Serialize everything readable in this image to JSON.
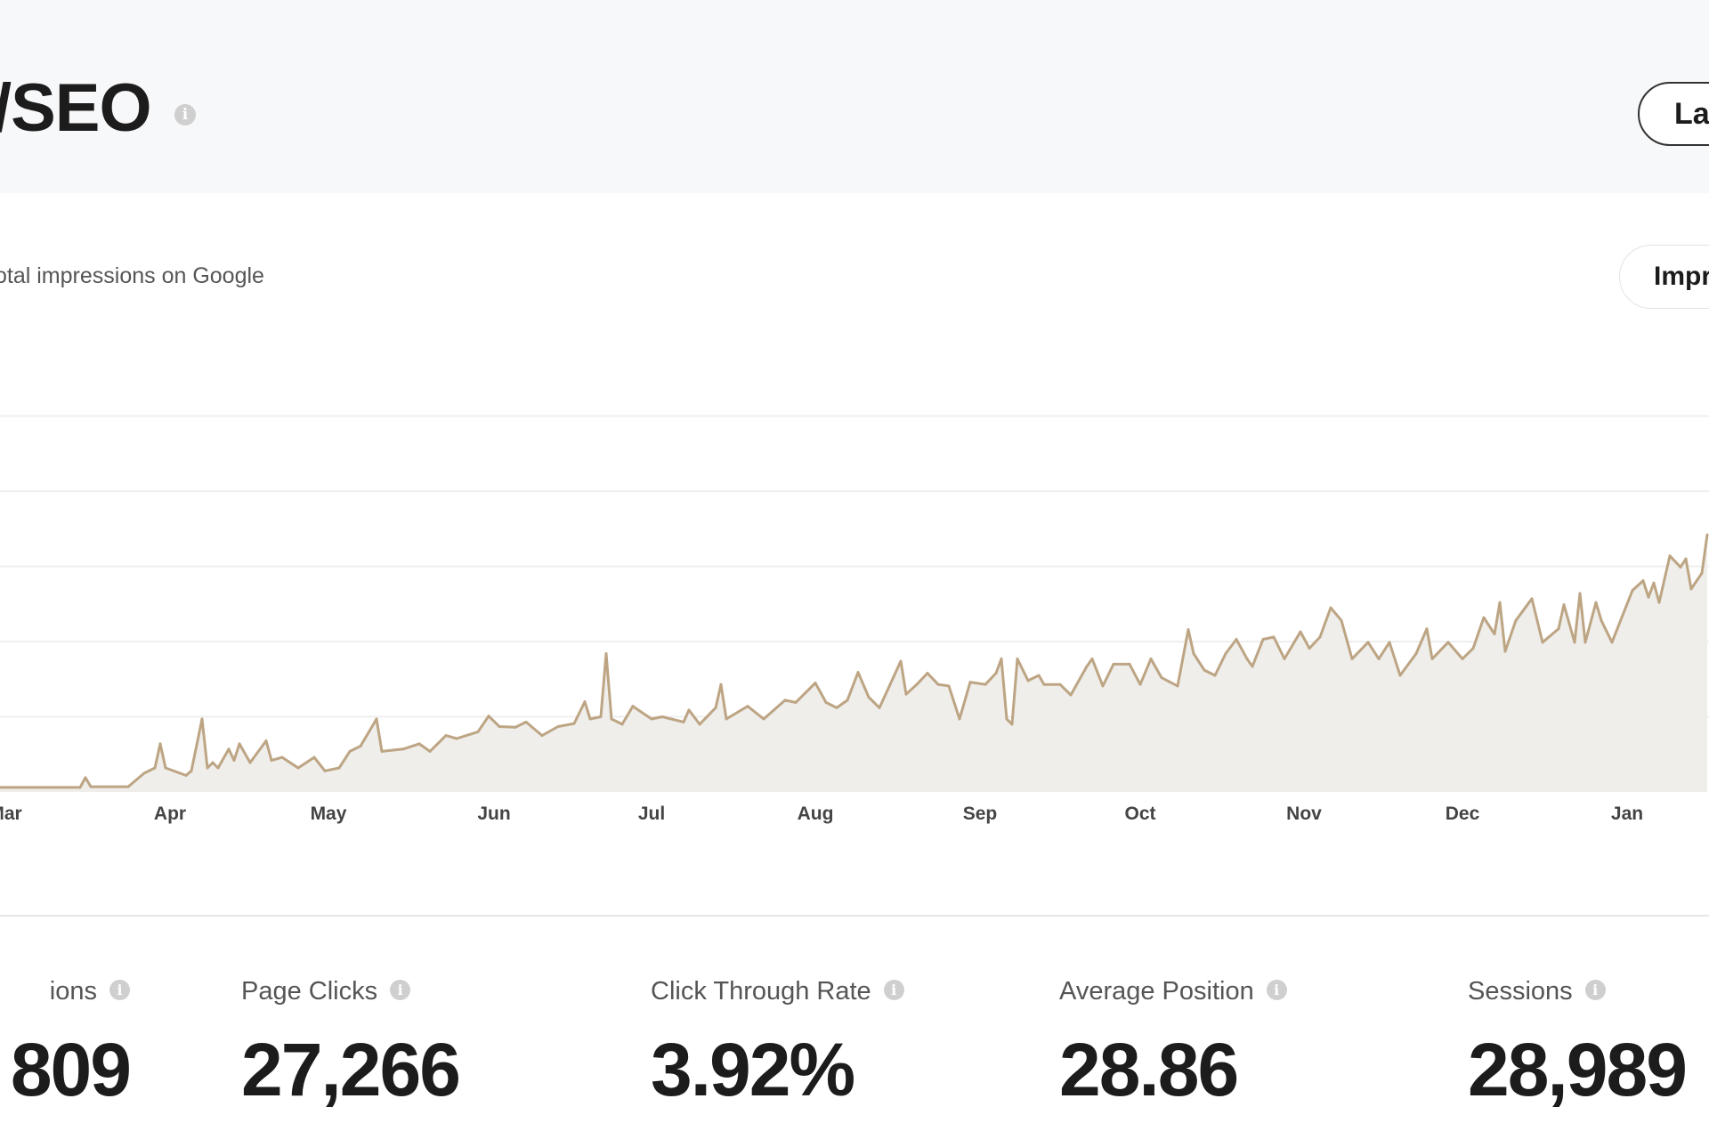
{
  "header": {
    "title": "/SEO",
    "title_info_icon": "info-icon",
    "date_range_button": "La"
  },
  "chart_section": {
    "subtitle": "otal impressions on Google",
    "metric_button": "Impr"
  },
  "chart_data": {
    "type": "area",
    "x_tick_labels": [
      "Mar",
      "Apr",
      "May",
      "Jun",
      "Jul",
      "Aug",
      "Sep",
      "Oct",
      "Nov",
      "Dec",
      "Jan"
    ],
    "y_unit_note": "values in gridline intervals (no y tick labels visible)",
    "ylim": [
      0,
      5
    ],
    "grid": true,
    "line_color": "#bda584",
    "fill_color": "#efeeeb",
    "points": [
      [
        "Mar 1",
        0.06
      ],
      [
        "Mar 15",
        0.06
      ],
      [
        "Mar 16",
        0.19
      ],
      [
        "Mar 17",
        0.07
      ],
      [
        "Mar 24",
        0.07
      ],
      [
        "Mar 27",
        0.25
      ],
      [
        "Mar 29",
        0.32
      ],
      [
        "Mar 30",
        0.64
      ],
      [
        "Mar 31",
        0.32
      ],
      [
        "Apr 4",
        0.22
      ],
      [
        "Apr 5",
        0.28
      ],
      [
        "Apr 7",
        0.97
      ],
      [
        "Apr 8",
        0.32
      ],
      [
        "Apr 9",
        0.39
      ],
      [
        "Apr 10",
        0.32
      ],
      [
        "Apr 12",
        0.57
      ],
      [
        "Apr 13",
        0.42
      ],
      [
        "Apr 14",
        0.64
      ],
      [
        "Apr 16",
        0.39
      ],
      [
        "Apr 19",
        0.68
      ],
      [
        "Apr 20",
        0.42
      ],
      [
        "Apr 22",
        0.46
      ],
      [
        "Apr 25",
        0.32
      ],
      [
        "Apr 28",
        0.46
      ],
      [
        "Apr 30",
        0.28
      ],
      [
        "May 3",
        0.32
      ],
      [
        "May 5",
        0.54
      ],
      [
        "May 7",
        0.61
      ],
      [
        "May 10",
        0.97
      ],
      [
        "May 11",
        0.54
      ],
      [
        "May 15",
        0.57
      ],
      [
        "May 18",
        0.64
      ],
      [
        "May 20",
        0.54
      ],
      [
        "May 23",
        0.75
      ],
      [
        "May 25",
        0.71
      ],
      [
        "May 29",
        0.8
      ],
      [
        "May 31",
        1.01
      ],
      [
        "Jun 2",
        0.87
      ],
      [
        "Jun 5",
        0.86
      ],
      [
        "Jun 7",
        0.93
      ],
      [
        "Jun 10",
        0.75
      ],
      [
        "Jun 13",
        0.87
      ],
      [
        "Jun 16",
        0.91
      ],
      [
        "Jun 18",
        1.2
      ],
      [
        "Jun 19",
        0.97
      ],
      [
        "Jun 21",
        1.0
      ],
      [
        "Jun 22",
        1.84
      ],
      [
        "Jun 23",
        0.97
      ],
      [
        "Jun 25",
        0.9
      ],
      [
        "Jun 27",
        1.14
      ],
      [
        "Jul 1",
        0.97
      ],
      [
        "Jul 3",
        1.0
      ],
      [
        "Jul 7",
        0.93
      ],
      [
        "Jul 8",
        1.09
      ],
      [
        "Jul 10",
        0.9
      ],
      [
        "Jul 13",
        1.12
      ],
      [
        "Jul 14",
        1.43
      ],
      [
        "Jul 15",
        0.97
      ],
      [
        "Jul 19",
        1.14
      ],
      [
        "Jul 22",
        0.97
      ],
      [
        "Jul 26",
        1.22
      ],
      [
        "Jul 28",
        1.19
      ],
      [
        "Aug 1",
        1.45
      ],
      [
        "Aug 3",
        1.19
      ],
      [
        "Aug 5",
        1.12
      ],
      [
        "Aug 7",
        1.22
      ],
      [
        "Aug 9",
        1.59
      ],
      [
        "Aug 11",
        1.26
      ],
      [
        "Aug 13",
        1.12
      ],
      [
        "Aug 15",
        1.43
      ],
      [
        "Aug 17",
        1.74
      ],
      [
        "Aug 18",
        1.3
      ],
      [
        "Aug 20",
        1.43
      ],
      [
        "Aug 22",
        1.58
      ],
      [
        "Aug 24",
        1.43
      ],
      [
        "Aug 26",
        1.41
      ],
      [
        "Aug 28",
        0.97
      ],
      [
        "Aug 30",
        1.46
      ],
      [
        "Sep 2",
        1.43
      ],
      [
        "Sep 4",
        1.58
      ],
      [
        "Sep 5",
        1.77
      ],
      [
        "Sep 6",
        0.97
      ],
      [
        "Sep 7",
        0.9
      ],
      [
        "Sep 8",
        1.77
      ],
      [
        "Sep 10",
        1.48
      ],
      [
        "Sep 12",
        1.55
      ],
      [
        "Sep 13",
        1.43
      ],
      [
        "Sep 16",
        1.43
      ],
      [
        "Sep 18",
        1.29
      ],
      [
        "Sep 21",
        1.67
      ],
      [
        "Sep 22",
        1.77
      ],
      [
        "Sep 24",
        1.41
      ],
      [
        "Sep 26",
        1.7
      ],
      [
        "Sep 29",
        1.7
      ],
      [
        "Oct 1",
        1.43
      ],
      [
        "Oct 3",
        1.77
      ],
      [
        "Oct 5",
        1.52
      ],
      [
        "Oct 8",
        1.41
      ],
      [
        "Oct 10",
        2.16
      ],
      [
        "Oct 11",
        1.84
      ],
      [
        "Oct 13",
        1.62
      ],
      [
        "Oct 15",
        1.55
      ],
      [
        "Oct 17",
        1.84
      ],
      [
        "Oct 19",
        2.03
      ],
      [
        "Oct 21",
        1.77
      ],
      [
        "Oct 22",
        1.67
      ],
      [
        "Oct 24",
        2.03
      ],
      [
        "Oct 26",
        2.06
      ],
      [
        "Oct 28",
        1.77
      ],
      [
        "Oct 31",
        2.13
      ],
      [
        "Nov 2",
        1.91
      ],
      [
        "Nov 4",
        2.06
      ],
      [
        "Nov 6",
        2.45
      ],
      [
        "Nov 8",
        2.28
      ],
      [
        "Nov 10",
        1.77
      ],
      [
        "Nov 13",
        1.99
      ],
      [
        "Nov 15",
        1.77
      ],
      [
        "Nov 17",
        1.99
      ],
      [
        "Nov 19",
        1.55
      ],
      [
        "Nov 22",
        1.84
      ],
      [
        "Nov 24",
        2.17
      ],
      [
        "Nov 25",
        1.77
      ],
      [
        "Nov 28",
        1.99
      ],
      [
        "Dec 1",
        1.77
      ],
      [
        "Dec 3",
        1.91
      ],
      [
        "Dec 5",
        2.32
      ],
      [
        "Dec 7",
        2.1
      ],
      [
        "Dec 8",
        2.52
      ],
      [
        "Dec 9",
        1.87
      ],
      [
        "Dec 11",
        2.28
      ],
      [
        "Dec 14",
        2.57
      ],
      [
        "Dec 16",
        1.99
      ],
      [
        "Dec 19",
        2.17
      ],
      [
        "Dec 20",
        2.49
      ],
      [
        "Dec 22",
        1.99
      ],
      [
        "Dec 23",
        2.64
      ],
      [
        "Dec 24",
        1.99
      ],
      [
        "Dec 26",
        2.52
      ],
      [
        "Dec 27",
        2.28
      ],
      [
        "Dec 29",
        1.99
      ],
      [
        "Jan 2",
        2.68
      ],
      [
        "Jan 4",
        2.81
      ],
      [
        "Jan 5",
        2.59
      ],
      [
        "Jan 6",
        2.78
      ],
      [
        "Jan 7",
        2.52
      ],
      [
        "Jan 9",
        3.14
      ],
      [
        "Jan 11",
        2.99
      ],
      [
        "Jan 12",
        3.1
      ],
      [
        "Jan 13",
        2.7
      ],
      [
        "Jan 15",
        2.91
      ],
      [
        "Jan 16",
        3.42
      ]
    ]
  },
  "stats": [
    {
      "label": "ions",
      "value": "809"
    },
    {
      "label": "Page Clicks",
      "value": "27,266"
    },
    {
      "label": "Click Through Rate",
      "value": "3.92%"
    },
    {
      "label": "Average Position",
      "value": "28.86"
    },
    {
      "label": "Sessions",
      "value": "28,989"
    }
  ]
}
